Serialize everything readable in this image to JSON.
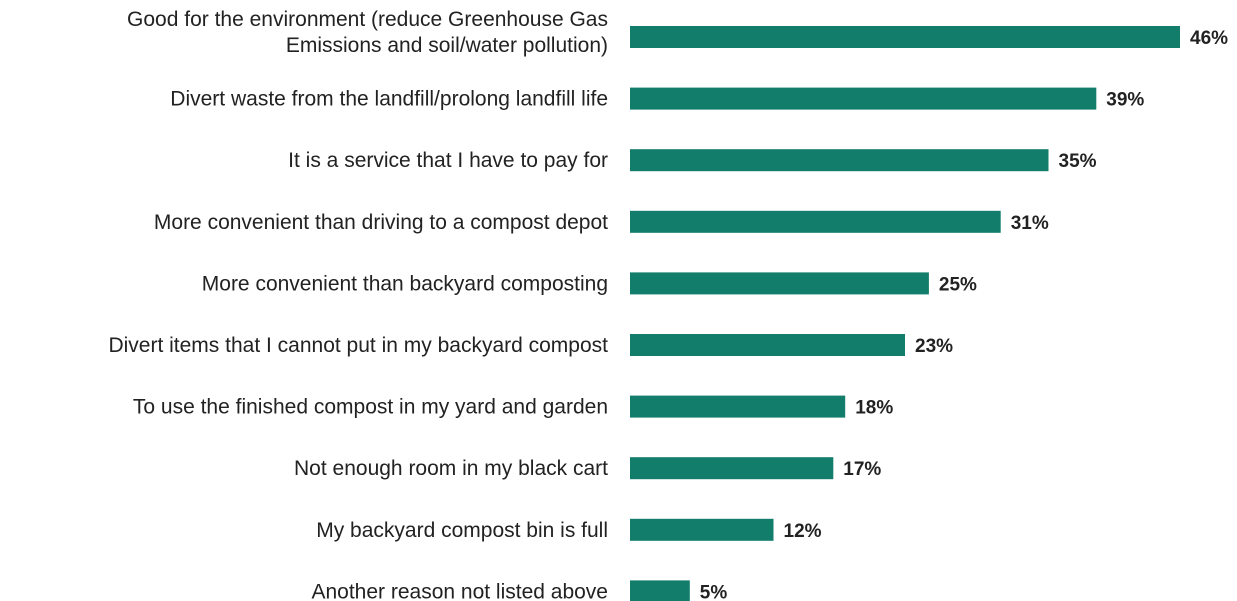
{
  "chart_data": {
    "type": "bar",
    "orientation": "horizontal",
    "categories": [
      "Good for the environment (reduce Greenhouse Gas Emissions and soil/water pollution)",
      "Divert waste from the landfill/prolong landfill life",
      "It is a service that I have to pay for",
      "More convenient than driving to a compost depot",
      "More convenient than backyard composting",
      "Divert items that I cannot put in my backyard compost",
      "To use the finished compost in my yard and garden",
      "Not enough room in my black cart",
      "My backyard compost bin is full",
      "Another reason not listed above"
    ],
    "category_lines": [
      [
        "Good for the environment (reduce Greenhouse Gas",
        "Emissions and soil/water pollution)"
      ],
      [
        "Divert waste from the landfill/prolong landfill life"
      ],
      [
        "It is a service that I have to pay for"
      ],
      [
        "More convenient than driving to a compost depot"
      ],
      [
        "More convenient than backyard composting"
      ],
      [
        "Divert items that I cannot put in my backyard compost"
      ],
      [
        "To use the finished compost in my yard and garden"
      ],
      [
        "Not enough room in my black cart"
      ],
      [
        "My backyard compost bin is full"
      ],
      [
        "Another reason not listed above"
      ]
    ],
    "values": [
      46,
      39,
      35,
      31,
      25,
      23,
      18,
      17,
      12,
      5
    ],
    "value_labels": [
      "46%",
      "39%",
      "35%",
      "31%",
      "25%",
      "23%",
      "18%",
      "17%",
      "12%",
      "5%"
    ],
    "xlim": [
      0,
      46
    ],
    "grid": false,
    "bar_color": "#127d6b",
    "text_color": "#222222"
  }
}
